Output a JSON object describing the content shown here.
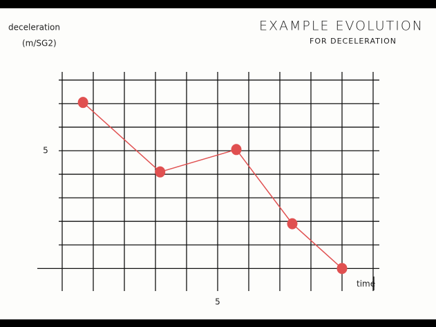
{
  "chart_data": {
    "type": "line",
    "title": "EXAMPLE EVOLUTION",
    "subtitle": "FOR DECELERATION",
    "y_label": [
      "deceleration",
      "(m/SG2)"
    ],
    "x_label": "time",
    "x": [
      0.67,
      3.15,
      5.6,
      7.4,
      9.0
    ],
    "series": [
      {
        "color": "#e05050",
        "values": [
          7.05,
          4.1,
          5.05,
          1.9,
          0
        ]
      }
    ],
    "xlim": [
      -0.8,
      10.2
    ],
    "ylim": [
      -0.9,
      8.2
    ],
    "xticks": [
      5
    ],
    "yticks": [
      5
    ],
    "xgrid": [
      1,
      2,
      3,
      4,
      5,
      6,
      7,
      8,
      9,
      10
    ],
    "ygrid": [
      1,
      2,
      3,
      4,
      5,
      6,
      7,
      8
    ],
    "grid": true
  }
}
